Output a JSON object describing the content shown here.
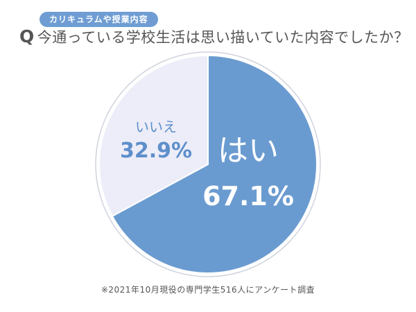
{
  "badge": "カリキュラムや授業内容",
  "title": {
    "prefix": "Q",
    "text": "今通っている学校生活は思い描いていた内容でしたか？"
  },
  "footnote": "※2021年10月現役の専門学生516人にアンケート調査",
  "chart_data": {
    "type": "pie",
    "title": "今通っている学校生活は思い描いていた内容でしたか？",
    "slices": [
      {
        "label": "はい",
        "value": 67.1,
        "display": "67.1%",
        "color": "#6a9bd0",
        "text_color": "#ffffff"
      },
      {
        "label": "いいえ",
        "value": 32.9,
        "display": "32.9%",
        "color": "#ecedf8",
        "text_color": "#5e8fcb"
      }
    ],
    "start": "top",
    "direction": "clockwise"
  }
}
